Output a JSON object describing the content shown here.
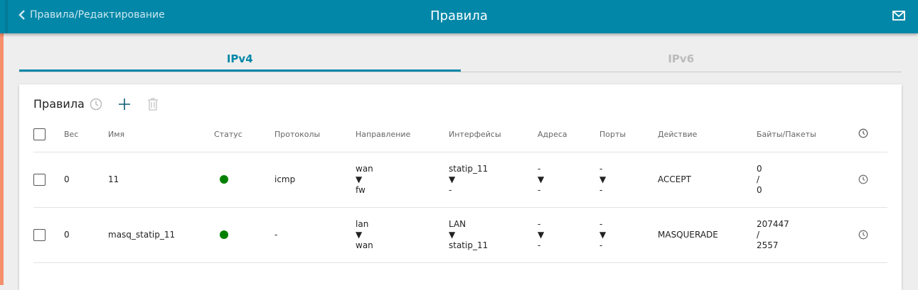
{
  "header": {
    "back_label": "Правила/Редактирование",
    "title": "Правила",
    "icons": {
      "back": "chevron-left-icon",
      "mail": "mail-icon"
    }
  },
  "tabs": [
    {
      "label": "IPv4",
      "active": true
    },
    {
      "label": "IPv6",
      "active": false
    }
  ],
  "card": {
    "title": "Правила"
  },
  "columns": [
    "Вес",
    "Имя",
    "Статус",
    "Протоколы",
    "Направление",
    "Интерфейсы",
    "Адреса",
    "Порты",
    "Действие",
    "Байты/Пакеты"
  ],
  "rows": [
    {
      "weight": "0",
      "name": "11",
      "status": "active",
      "protocol": "icmp",
      "dir_from": "wan",
      "dir_to": "fw",
      "if_from": "statip_11",
      "if_to": "-",
      "addr_from": "-",
      "addr_to": "-",
      "port_from": "-",
      "port_to": "-",
      "action": "ACCEPT",
      "bytes": "0",
      "sep": "/",
      "packets": "0"
    },
    {
      "weight": "0",
      "name": "masq_statip_11",
      "status": "active",
      "protocol": "-",
      "dir_from": "lan",
      "dir_to": "wan",
      "if_from": "LAN",
      "if_to": "statip_11",
      "addr_from": "-",
      "addr_to": "-",
      "port_from": "-",
      "port_to": "-",
      "action": "MASQUERADE",
      "bytes": "207447",
      "sep": "/",
      "packets": "2557"
    }
  ],
  "arrow": "▼",
  "colors": {
    "header": "#0287a8",
    "accent": "#0287a8",
    "status_active": "#008000",
    "side_strip": "#f58f6c"
  }
}
